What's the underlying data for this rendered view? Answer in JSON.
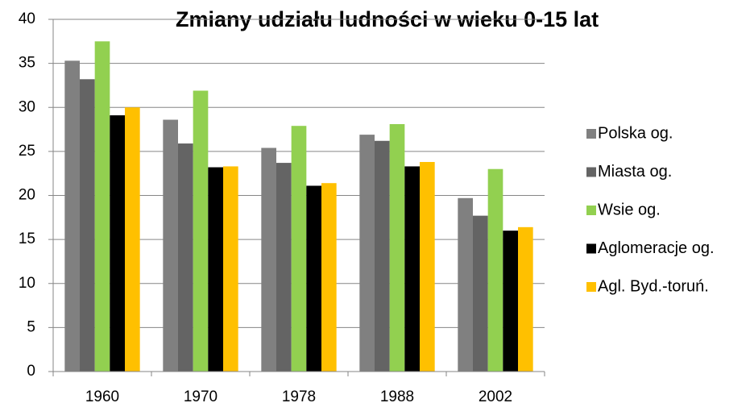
{
  "chart_data": {
    "type": "bar",
    "title": "Zmiany udziału ludności w wieku 0-15 lat",
    "categories": [
      "1960",
      "1970",
      "1978",
      "1988",
      "2002"
    ],
    "series": [
      {
        "name": "Polska og.",
        "color": "#808080",
        "values": [
          35.3,
          28.6,
          25.4,
          26.9,
          19.7
        ]
      },
      {
        "name": "Miasta og.",
        "color": "#646464",
        "values": [
          33.2,
          25.9,
          23.7,
          26.2,
          17.7
        ]
      },
      {
        "name": "Wsie og.",
        "color": "#92d050",
        "values": [
          37.5,
          31.9,
          27.9,
          28.1,
          23.0
        ]
      },
      {
        "name": "Aglomeracje og.",
        "color": "#000000",
        "values": [
          29.1,
          23.2,
          21.1,
          23.3,
          16.0
        ]
      },
      {
        "name": "Agl. Byd.-toruń.",
        "color": "#ffc000",
        "values": [
          30.0,
          23.3,
          21.4,
          23.8,
          16.4
        ]
      }
    ],
    "ylim": [
      0,
      40
    ],
    "yticks": [
      0,
      5,
      10,
      15,
      20,
      25,
      30,
      35,
      40
    ],
    "grid": true,
    "legend": "right"
  }
}
